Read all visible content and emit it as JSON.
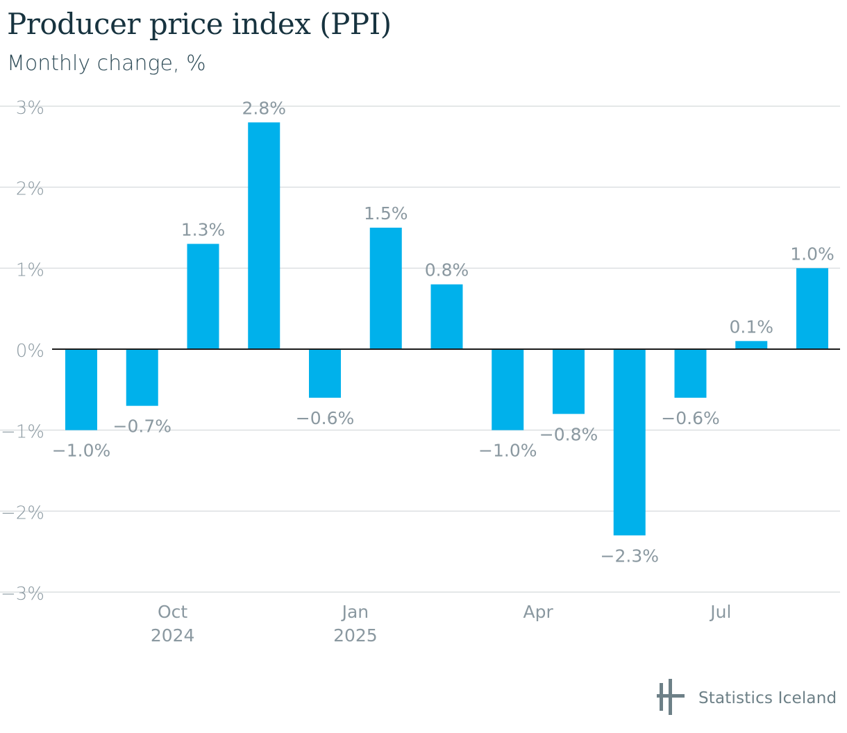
{
  "header": {
    "title": "Producer price index (PPI)",
    "subtitle": "Monthly change, %"
  },
  "brand": {
    "name": "Statistics Iceland",
    "logo_icon": "statistics-iceland-logo-icon",
    "color": "#6d8087"
  },
  "colors": {
    "bar": "#00b1eb",
    "grid": "#dcdfe1",
    "zero_line": "#1b1b1b",
    "tick_text": "#8a98a0",
    "label_text": "#8a98a0"
  },
  "chart_data": {
    "type": "bar",
    "x": [
      "2024-08",
      "2024-09",
      "2024-10",
      "2024-11",
      "2024-12",
      "2025-01",
      "2025-02",
      "2025-03",
      "2025-04",
      "2025-05",
      "2025-06",
      "2025-07",
      "2025-08"
    ],
    "values": [
      -1.0,
      -0.7,
      1.3,
      2.8,
      -0.6,
      1.5,
      0.8,
      -1.0,
      -0.8,
      -2.3,
      -0.6,
      0.1,
      1.0
    ],
    "data_labels": [
      "−1.0%",
      "−0.7%",
      "1.3%",
      "2.8%",
      "−0.6%",
      "1.5%",
      "0.8%",
      "−1.0%",
      "−0.8%",
      "−2.3%",
      "−0.6%",
      "0.1%",
      "1.0%"
    ],
    "ylim": [
      -3,
      3
    ],
    "y_ticks": [
      3,
      2,
      1,
      0,
      -1,
      -2,
      -3
    ],
    "y_tick_labels": [
      "3%",
      "2%",
      "1%",
      "0%",
      "−1%",
      "−2%",
      "−3%"
    ],
    "x_ticks": [
      {
        "at": "2024-10",
        "label": "Oct",
        "year": "2024"
      },
      {
        "at": "2025-01",
        "label": "Jan",
        "year": "2025"
      },
      {
        "at": "2025-04",
        "label": "Apr",
        "year": ""
      },
      {
        "at": "2025-07",
        "label": "Jul",
        "year": ""
      }
    ],
    "grid": true,
    "legend": "none",
    "title": "Producer price index (PPI)",
    "subtitle": "Monthly change, %",
    "xlabel": "",
    "ylabel": ""
  }
}
